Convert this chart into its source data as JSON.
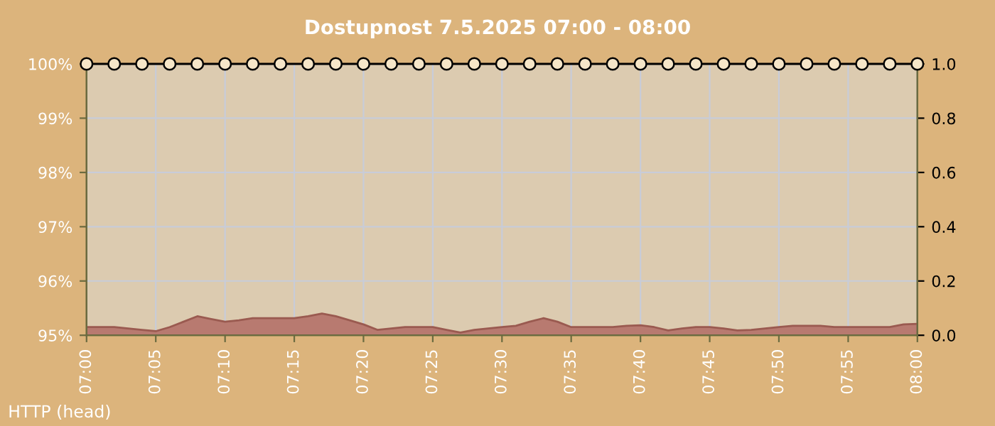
{
  "chart_data": {
    "type": "line",
    "title": "Dostupnost 7.5.2025 07:00 - 08:00",
    "annotations": [
      "HTTP (head)"
    ],
    "xlim": [
      7,
      8
    ],
    "xticks": [
      {
        "value": 7,
        "label": "07:00"
      },
      {
        "value": 7.0833,
        "label": "07:05"
      },
      {
        "value": 7.1667,
        "label": "07:10"
      },
      {
        "value": 7.25,
        "label": "07:15"
      },
      {
        "value": 7.3333,
        "label": "07:20"
      },
      {
        "value": 7.4167,
        "label": "07:25"
      },
      {
        "value": 7.5,
        "label": "07:30"
      },
      {
        "value": 7.5833,
        "label": "07:35"
      },
      {
        "value": 7.6667,
        "label": "07:40"
      },
      {
        "value": 7.75,
        "label": "07:45"
      },
      {
        "value": 7.8333,
        "label": "07:50"
      },
      {
        "value": 7.9167,
        "label": "07:55"
      },
      {
        "value": 8,
        "label": "08:00"
      }
    ],
    "ylim": [
      95,
      100
    ],
    "yticks": [
      {
        "value": 95,
        "label": "95%"
      },
      {
        "value": 96,
        "label": "96%"
      },
      {
        "value": 97,
        "label": "97%"
      },
      {
        "value": 98,
        "label": "98%"
      },
      {
        "value": 99,
        "label": "99%"
      },
      {
        "value": 100,
        "label": "100%"
      }
    ],
    "y2lim": [
      0,
      1
    ],
    "y2ticks": [
      {
        "value": 0,
        "label": "0.0"
      },
      {
        "value": 0.2,
        "label": "0.2"
      },
      {
        "value": 0.4,
        "label": "0.4"
      },
      {
        "value": 0.6,
        "label": "0.6"
      },
      {
        "value": 0.8,
        "label": "0.8"
      },
      {
        "value": 1,
        "label": "1.0"
      }
    ],
    "grid": true,
    "series": [
      {
        "type": "area",
        "axis": "y2",
        "color": "#b87a70",
        "x": [
          7,
          7.0167,
          7.0333,
          7.05,
          7.0667,
          7.0833,
          7.1,
          7.1167,
          7.1333,
          7.15,
          7.1667,
          7.1833,
          7.2,
          7.2167,
          7.2333,
          7.25,
          7.2667,
          7.2833,
          7.3,
          7.3167,
          7.3333,
          7.35,
          7.3667,
          7.3833,
          7.4,
          7.4167,
          7.4333,
          7.45,
          7.4667,
          7.4833,
          7.5,
          7.5167,
          7.5333,
          7.55,
          7.5667,
          7.5833,
          7.6,
          7.6167,
          7.6333,
          7.65,
          7.6667,
          7.6833,
          7.7,
          7.7167,
          7.7333,
          7.75,
          7.7667,
          7.7833,
          7.8,
          7.8167,
          7.8333,
          7.85,
          7.8667,
          7.8833,
          7.9,
          7.9167,
          7.9333,
          7.95,
          7.9667,
          7.9833,
          8
        ],
        "values": [
          0.03,
          0.03,
          0.03,
          0.025,
          0.02,
          0.015,
          0.03,
          0.05,
          0.07,
          0.06,
          0.05,
          0.055,
          0.063,
          0.063,
          0.063,
          0.063,
          0.07,
          0.08,
          0.07,
          0.055,
          0.04,
          0.02,
          0.025,
          0.03,
          0.03,
          0.03,
          0.02,
          0.01,
          0.02,
          0.025,
          0.03,
          0.035,
          0.05,
          0.063,
          0.05,
          0.03,
          0.03,
          0.03,
          0.03,
          0.035,
          0.037,
          0.03,
          0.018,
          0.025,
          0.03,
          0.03,
          0.025,
          0.018,
          0.02,
          0.025,
          0.03,
          0.035,
          0.035,
          0.035,
          0.03,
          0.03,
          0.03,
          0.03,
          0.03,
          0.04,
          0.042
        ]
      },
      {
        "color": "#000000",
        "marker": "circle",
        "x": [
          7,
          7.0333,
          7.0667,
          7.1,
          7.1333,
          7.1667,
          7.2,
          7.2333,
          7.2667,
          7.3,
          7.3333,
          7.3667,
          7.4,
          7.4333,
          7.4667,
          7.5,
          7.5333,
          7.5667,
          7.6,
          7.6333,
          7.6667,
          7.7,
          7.7333,
          7.7667,
          7.8,
          7.8333,
          7.8667,
          7.9,
          7.9333,
          7.9667,
          8
        ],
        "values": [
          100,
          100,
          100,
          100,
          100,
          100,
          100,
          100,
          100,
          100,
          100,
          100,
          100,
          100,
          100,
          100,
          100,
          100,
          100,
          100,
          100,
          100,
          100,
          100,
          100,
          100,
          100,
          100,
          100,
          100,
          100
        ]
      }
    ]
  }
}
